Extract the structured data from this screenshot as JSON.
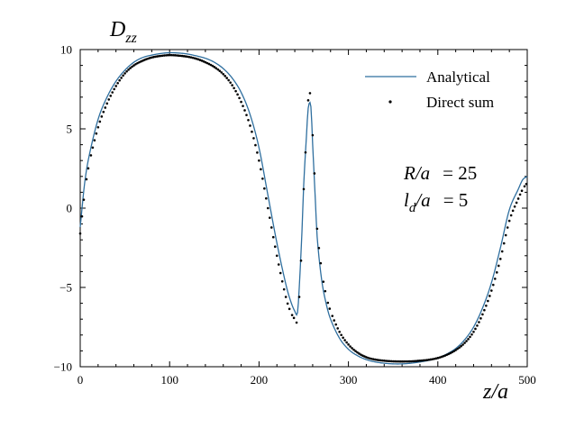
{
  "chart_data": {
    "type": "line",
    "xlabel_var": "z/a",
    "ylabel_var": "D",
    "ylabel_sub": "zz",
    "xlim": [
      0,
      500
    ],
    "ylim": [
      -10,
      10
    ],
    "xticks": [
      "0",
      "100",
      "200",
      "300",
      "400",
      "500"
    ],
    "yticks": [
      "10",
      "5",
      "0",
      "−5",
      "−10"
    ],
    "grid": false,
    "legend_placement": "top-right",
    "legend": [
      "Analytical",
      "Direct sum"
    ],
    "colors": {
      "analytical": "#2f6f9f",
      "direct_sum": "#000000"
    },
    "annotations": {
      "R": {
        "var": "R/a",
        "value": "= 25"
      },
      "l": {
        "var": "l",
        "sub": "d",
        "rest": "/a",
        "value": "= 5"
      }
    },
    "series": [
      {
        "name": "Analytical",
        "style": "line",
        "x": [
          0,
          5,
          10,
          20,
          30,
          40,
          50,
          60,
          70,
          80,
          90,
          100,
          110,
          120,
          130,
          140,
          150,
          160,
          170,
          180,
          190,
          200,
          210,
          220,
          230,
          235,
          240,
          243,
          245,
          248,
          250,
          253,
          255,
          258,
          260,
          263,
          265,
          270,
          275,
          280,
          290,
          300,
          310,
          320,
          330,
          340,
          350,
          360,
          370,
          380,
          390,
          400,
          410,
          420,
          430,
          440,
          450,
          460,
          470,
          480,
          490,
          495,
          500
        ],
        "y": [
          -1.2,
          1.6,
          3.3,
          5.6,
          7.0,
          8.0,
          8.7,
          9.2,
          9.5,
          9.65,
          9.75,
          9.8,
          9.78,
          9.72,
          9.6,
          9.45,
          9.2,
          8.8,
          8.2,
          7.3,
          5.9,
          3.8,
          0.8,
          -2.2,
          -4.8,
          -5.8,
          -6.5,
          -6.6,
          -5.0,
          -1.5,
          1.5,
          4.5,
          6.3,
          6.4,
          4.0,
          0.5,
          -1.8,
          -4.5,
          -6.0,
          -7.0,
          -8.2,
          -8.9,
          -9.3,
          -9.55,
          -9.7,
          -9.78,
          -9.82,
          -9.82,
          -9.78,
          -9.7,
          -9.6,
          -9.45,
          -9.2,
          -8.85,
          -8.3,
          -7.5,
          -6.3,
          -4.7,
          -2.5,
          -0.1,
          1.2,
          1.8,
          2.0
        ]
      },
      {
        "name": "Direct sum",
        "style": "dots",
        "x": [
          0,
          5,
          10,
          20,
          30,
          40,
          50,
          60,
          70,
          80,
          90,
          100,
          110,
          120,
          130,
          140,
          150,
          160,
          170,
          180,
          190,
          200,
          210,
          220,
          230,
          235,
          240,
          243,
          245,
          248,
          250,
          253,
          255,
          258,
          260,
          263,
          265,
          270,
          275,
          280,
          290,
          300,
          310,
          320,
          330,
          340,
          350,
          360,
          370,
          380,
          390,
          400,
          410,
          420,
          430,
          440,
          450,
          460,
          470,
          480,
          490,
          495,
          500
        ],
        "y": [
          -1.6,
          1.0,
          2.8,
          5.1,
          6.6,
          7.7,
          8.5,
          9.0,
          9.3,
          9.5,
          9.6,
          9.65,
          9.62,
          9.55,
          9.42,
          9.2,
          8.9,
          8.45,
          7.75,
          6.7,
          5.2,
          3.0,
          0.0,
          -3.0,
          -5.6,
          -6.5,
          -7.0,
          -7.1,
          -5.6,
          -2.0,
          1.2,
          4.6,
          6.8,
          7.0,
          4.6,
          1.0,
          -1.3,
          -3.9,
          -5.5,
          -6.5,
          -7.8,
          -8.6,
          -9.1,
          -9.4,
          -9.55,
          -9.62,
          -9.66,
          -9.67,
          -9.66,
          -9.62,
          -9.56,
          -9.45,
          -9.25,
          -8.95,
          -8.5,
          -7.8,
          -6.7,
          -5.2,
          -3.2,
          -0.8,
          0.6,
          1.2,
          1.6
        ]
      }
    ]
  }
}
